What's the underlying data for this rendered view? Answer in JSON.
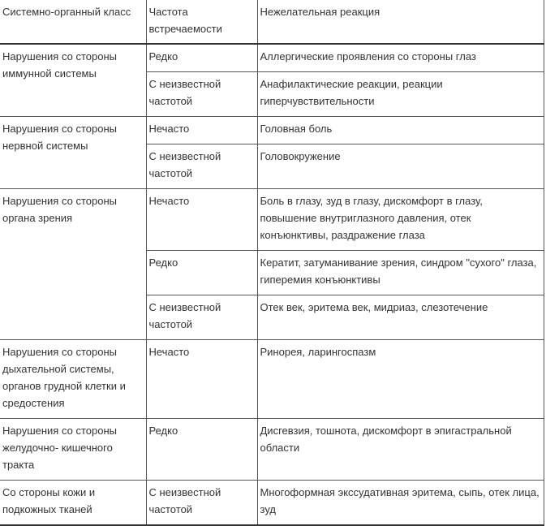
{
  "table": {
    "headers": [
      "Системно-органный класс",
      "Частота встречаемости",
      "Нежелательная реакция"
    ],
    "groups": [
      {
        "class": "Нарушения со стороны иммунной системы",
        "rows": [
          {
            "frequency": "Редко",
            "reaction": "Аллергические проявления со стороны глаз"
          },
          {
            "frequency": "С неизвестной частотой",
            "reaction": "Анафилактические реакции, реакции гиперчувствительности"
          }
        ]
      },
      {
        "class": "Нарушения со стороны нервной системы",
        "rows": [
          {
            "frequency": "Нечасто",
            "reaction": "Головная боль"
          },
          {
            "frequency": "С неизвестной частотой",
            "reaction": "Головокружение"
          }
        ]
      },
      {
        "class": "Нарушения со стороны органа зрения",
        "rows": [
          {
            "frequency": "Нечасто",
            "reaction": "Боль в глазу, зуд в глазу, дискомфорт в глазу, повышение внутриглазного давления, отек конъюнктивы, раздражение глаза"
          },
          {
            "frequency": "Редко",
            "reaction": "Кератит, затуманивание зрения, синдром \"сухого\" глаза, гиперемия конъюнктивы"
          },
          {
            "frequency": "С неизвестной частотой",
            "reaction": "Отек век, эритема век, мидриаз, слезотечение"
          }
        ]
      },
      {
        "class": "Нарушения со стороны дыхательной системы, органов грудной клетки и средостения",
        "rows": [
          {
            "frequency": "Нечасто",
            "reaction": "Ринорея, ларингоспазм"
          }
        ]
      },
      {
        "class": "Нарушения со стороны желудочно- кишечного тракта",
        "rows": [
          {
            "frequency": "Редко",
            "reaction": "Дисгевзия, тошнота, дискомфорт в эпигастральной области"
          }
        ]
      },
      {
        "class": "Со стороны кожи и подкожных тканей",
        "rows": [
          {
            "frequency": "С неизвестной частотой",
            "reaction": "Многоформная экссудативная эритема, сыпь, отек лица, зуд"
          }
        ]
      }
    ]
  }
}
